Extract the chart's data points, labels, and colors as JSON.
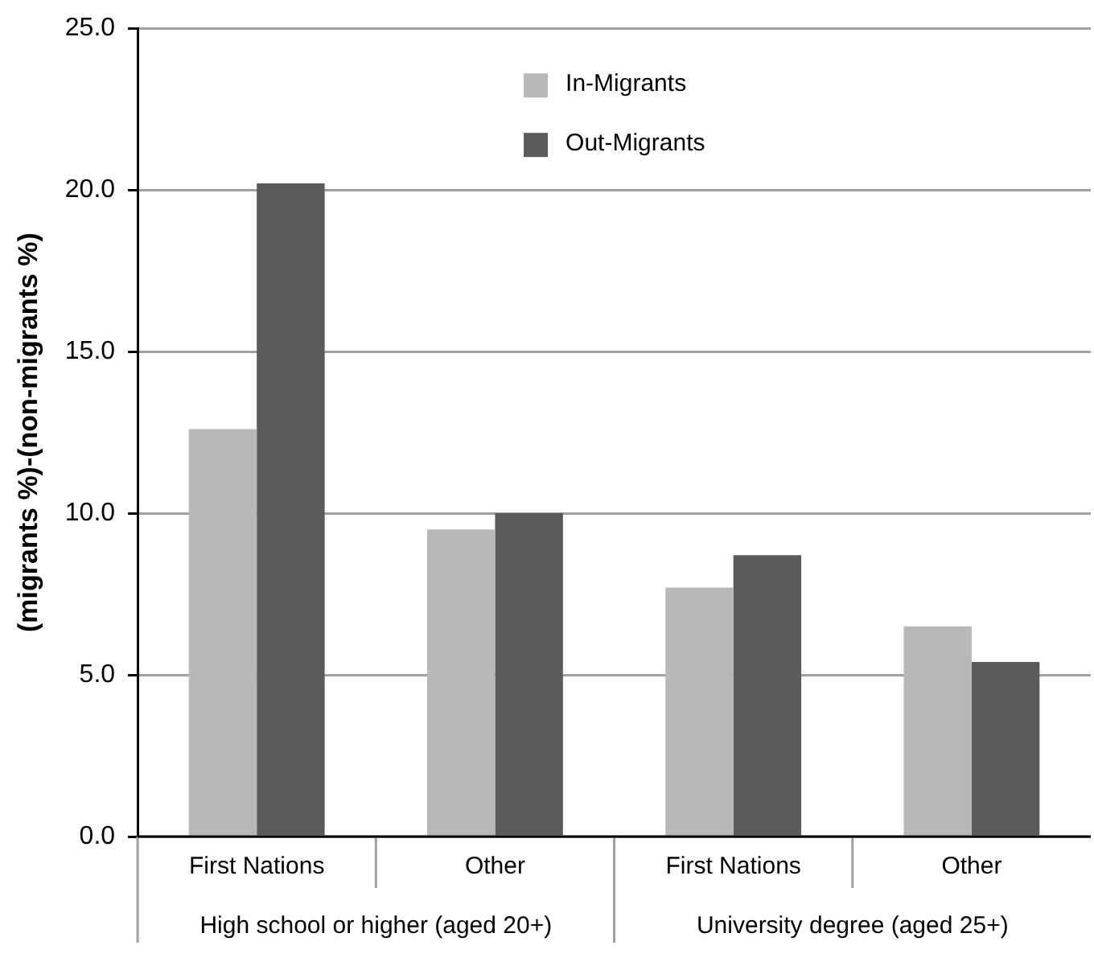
{
  "chart_data": {
    "type": "bar",
    "ylabel": "(migrants %)-(non-migrants %)",
    "categories": [
      "First Nations",
      "Other",
      "First Nations",
      "Other"
    ],
    "annotations": [
      "High school or higher (aged 20+)",
      "University degree (aged 25+)"
    ],
    "series": [
      {
        "name": "In-Migrants",
        "color": "#b8b8b8",
        "values": [
          12.6,
          9.5,
          7.7,
          6.5
        ]
      },
      {
        "name": "Out-Migrants",
        "color": "#5a5a5a",
        "values": [
          20.2,
          10.0,
          8.7,
          5.4
        ]
      }
    ],
    "ylim": [
      0,
      25
    ],
    "yticks": [
      {
        "value": 0,
        "label": "0.0"
      },
      {
        "value": 5,
        "label": "5.0"
      },
      {
        "value": 10,
        "label": "10.0"
      },
      {
        "value": 15,
        "label": "15.0"
      },
      {
        "value": 20,
        "label": "20.0"
      },
      {
        "value": 25,
        "label": "25.0"
      }
    ],
    "grid": "y",
    "legend": "top"
  }
}
